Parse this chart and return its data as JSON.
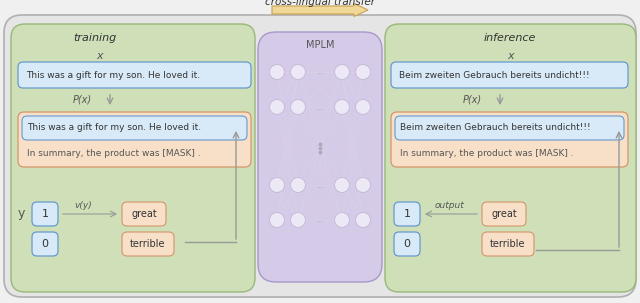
{
  "title": "cross-lingual transfer",
  "training_label": "training",
  "inference_label": "inference",
  "mplm_label": "MPLM",
  "x_label": "x",
  "px_label": "P(x)",
  "y_label": "y",
  "v_label": "v(y)",
  "output_label": "output",
  "text_en_input": "This was a gift for my son. He loved it.",
  "text_de_input": "Beim zweiten Gebrauch bereits undicht!!!",
  "text_en_prompt1": "This was a gift for my son. He loved it.",
  "text_en_prompt2": "In summary, the product was [MASK] .",
  "text_de_prompt1": "Beim zweiten Gebrauch bereits undicht!!!",
  "text_de_prompt2": "In summary, the product was [MASK] .",
  "label_1": "1",
  "label_0": "0",
  "word_great": "great",
  "word_terrible": "terrible",
  "bg_color": "#f0f0f0",
  "outer_bg": "#e5e5e5",
  "outer_border": "#b0b0b0",
  "green_bg": "#cfe0b8",
  "green_border": "#98b87a",
  "purple_bg": "#d5cbe8",
  "purple_border": "#a898cc",
  "blue_box_bg": "#d8eaf8",
  "blue_box_border": "#6699cc",
  "orange_box_bg": "#f8e0c8",
  "orange_box_border": "#d4956a",
  "arrow_fill": "#f0d898",
  "arrow_edge": "#c8a050",
  "node_color": "#ede8f5",
  "node_edge": "#c5bcd8",
  "line_color": "#d8d0e8",
  "gray_arrow": "#999999",
  "text_dark": "#333333",
  "text_mid": "#555555"
}
